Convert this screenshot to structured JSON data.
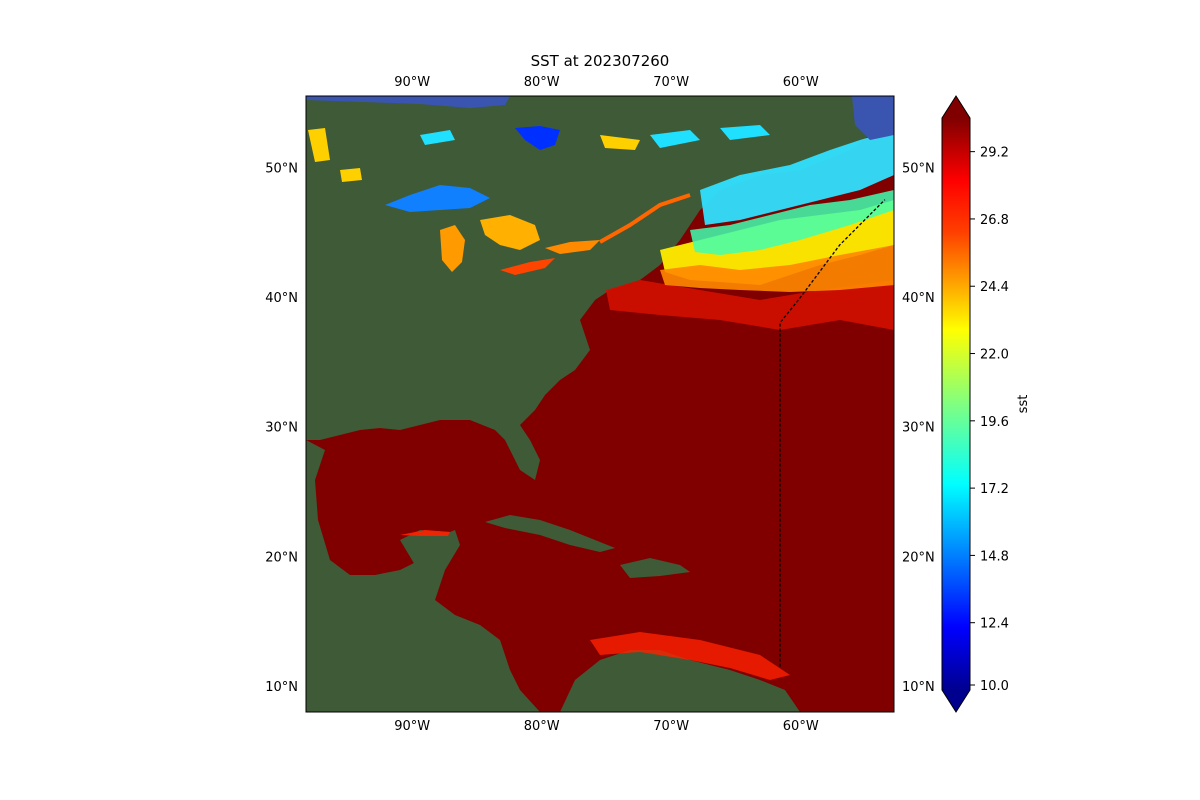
{
  "title": "SST at 202307260",
  "map": {
    "lon_labels": [
      "90°W",
      "80°W",
      "70°W",
      "60°W"
    ],
    "lon_values": [
      -90,
      -80,
      -70,
      -60
    ],
    "lat_labels": [
      "10°N",
      "20°N",
      "30°N",
      "40°N",
      "50°N"
    ],
    "lat_values": [
      10,
      20,
      30,
      40,
      50
    ],
    "extent": {
      "lon_min": -98.2,
      "lon_max": -52.8,
      "lat_min": 8.0,
      "lat_max": 55.5
    },
    "colors": {
      "land": "#3f5a36",
      "land_dark": "#2f4a2a",
      "warm_ocean": "#800000",
      "hot_ocean": "#cc1100",
      "lake": "#4060b8",
      "track": "#000000"
    }
  },
  "colorbar": {
    "label": "sst",
    "ticks": [
      "10.0",
      "12.4",
      "14.8",
      "17.2",
      "19.6",
      "22.0",
      "24.4",
      "26.8",
      "29.2"
    ],
    "tick_values": [
      10.0,
      12.4,
      14.8,
      17.2,
      19.6,
      22.0,
      24.4,
      26.8,
      29.2
    ],
    "vmin": 10.0,
    "vmax": 30.4,
    "colormap": "jet",
    "extend": "both"
  },
  "track": {
    "points": [
      [
        -61.6,
        11.5
      ],
      [
        -61.6,
        38.0
      ],
      [
        -60.0,
        40.0
      ],
      [
        -57.0,
        44.0
      ],
      [
        -53.5,
        47.5
      ]
    ]
  }
}
